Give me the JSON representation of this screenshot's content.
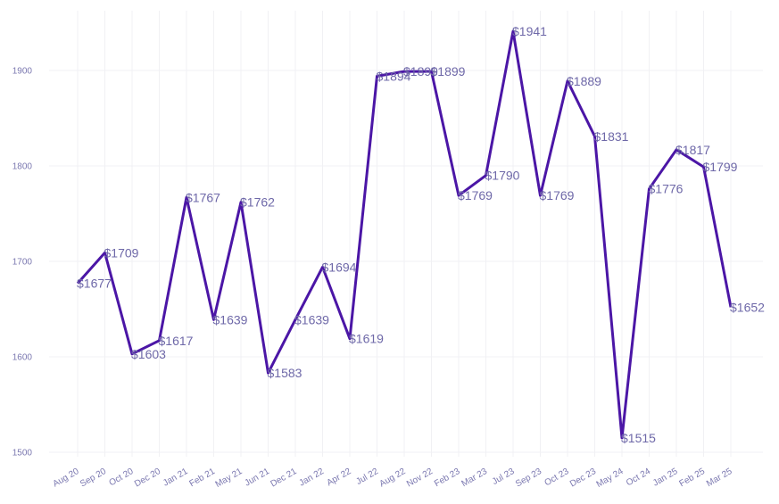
{
  "chart_data": {
    "type": "line",
    "title": "",
    "xlabel": "",
    "ylabel": "",
    "ylim": [
      1500,
      1950
    ],
    "yticks": [
      1500,
      1600,
      1700,
      1800,
      1900
    ],
    "grid": true,
    "line_color": "#4b16a6",
    "categories": [
      "Aug 20",
      "Sep 20",
      "Oct 20",
      "Dec 20",
      "Jan 21",
      "Feb 21",
      "May 21",
      "Jun 21",
      "Dec 21",
      "Jan 22",
      "Apr 22",
      "Jul 22",
      "Aug 22",
      "Nov 22",
      "Feb 23",
      "Mar 23",
      "Jul 23",
      "Sep 23",
      "Oct 23",
      "Dec 23",
      "May 24",
      "Oct 24",
      "Jan 25",
      "Feb 25",
      "Mar 25"
    ],
    "values": [
      1677,
      1709,
      1603,
      1617,
      1767,
      1639,
      1762,
      1583,
      1639,
      1694,
      1619,
      1894,
      1899,
      1899,
      1769,
      1790,
      1941,
      1769,
      1889,
      1831,
      1515,
      1776,
      1817,
      1799,
      1652
    ],
    "data_labels": [
      "$1677",
      "$1709",
      "$1603",
      "$1617",
      "$1767",
      "$1639",
      "$1762",
      "$1583",
      "$1639",
      "$1694",
      "$1619",
      "$1894",
      "$1899",
      "$1899",
      "$1769",
      "$1790",
      "$1941",
      "$1769",
      "$1889",
      "$1831",
      "$1515",
      "$1776",
      "$1817",
      "$1799",
      "$1652"
    ]
  }
}
